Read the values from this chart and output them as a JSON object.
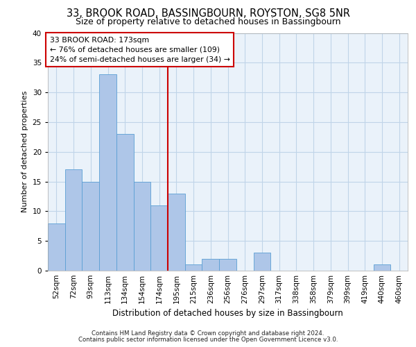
{
  "title1": "33, BROOK ROAD, BASSINGBOURN, ROYSTON, SG8 5NR",
  "title2": "Size of property relative to detached houses in Bassingbourn",
  "xlabel": "Distribution of detached houses by size in Bassingbourn",
  "ylabel": "Number of detached properties",
  "categories": [
    "52sqm",
    "72sqm",
    "93sqm",
    "113sqm",
    "134sqm",
    "154sqm",
    "174sqm",
    "195sqm",
    "215sqm",
    "236sqm",
    "256sqm",
    "276sqm",
    "297sqm",
    "317sqm",
    "338sqm",
    "358sqm",
    "379sqm",
    "399sqm",
    "419sqm",
    "440sqm",
    "460sqm"
  ],
  "values": [
    8,
    17,
    15,
    33,
    23,
    15,
    11,
    13,
    1,
    2,
    2,
    0,
    3,
    0,
    0,
    0,
    0,
    0,
    0,
    1,
    0
  ],
  "bar_color": "#aec6e8",
  "bar_edge_color": "#5a9fd4",
  "vline_x": 6.5,
  "vline_color": "#cc0000",
  "annotation_text": "33 BROOK ROAD: 173sqm\n← 76% of detached houses are smaller (109)\n24% of semi-detached houses are larger (34) →",
  "annotation_box_color": "#ffffff",
  "annotation_box_edge_color": "#cc0000",
  "footer1": "Contains HM Land Registry data © Crown copyright and database right 2024.",
  "footer2": "Contains public sector information licensed under the Open Government Licence v3.0.",
  "ylim": [
    0,
    40
  ],
  "yticks": [
    0,
    5,
    10,
    15,
    20,
    25,
    30,
    35,
    40
  ],
  "grid_color": "#c0d4e8",
  "bg_color": "#eaf2fa",
  "title1_fontsize": 10.5,
  "title2_fontsize": 9,
  "ylabel_fontsize": 8,
  "xlabel_fontsize": 8.5,
  "tick_fontsize": 7.5,
  "ann_fontsize": 7.8
}
